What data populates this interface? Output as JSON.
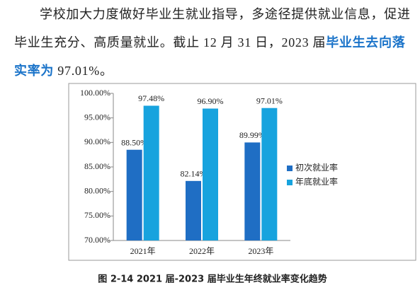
{
  "paragraph": {
    "text_before": "学校加大力度做好毕业生就业指导，多途径提供就业信息，促进毕业生充分、高质量就业。截止 12 月 31 日，2023 届",
    "emphasis": "毕业生去向落实率为",
    "text_after": " 97.01%。"
  },
  "chart_data": {
    "type": "bar",
    "categories": [
      "2021年",
      "2022年",
      "2023年"
    ],
    "series": [
      {
        "name": "初次就业率",
        "color": "#1f6ec4",
        "values": [
          88.5,
          82.14,
          89.99
        ],
        "value_labels": [
          "88.50%",
          "82.14%",
          "89.99%"
        ]
      },
      {
        "name": "年底就业率",
        "color": "#17a3de",
        "values": [
          97.48,
          96.9,
          97.01
        ],
        "value_labels": [
          "97.48%",
          "96.90%",
          "97.01%"
        ]
      }
    ],
    "ylim": [
      70,
      100
    ],
    "yticks": [
      {
        "value": 70,
        "label": "70.00%"
      },
      {
        "value": 75,
        "label": "75.00%"
      },
      {
        "value": 80,
        "label": "80.00%"
      },
      {
        "value": 85,
        "label": "85.00%"
      },
      {
        "value": 90,
        "label": "90.00%"
      },
      {
        "value": 95,
        "label": "95.00%"
      },
      {
        "value": 100,
        "label": "100.00%"
      }
    ],
    "legend": "right"
  },
  "caption": "图 2-14 2021 届-2023 届毕业生年终就业率变化趋势"
}
